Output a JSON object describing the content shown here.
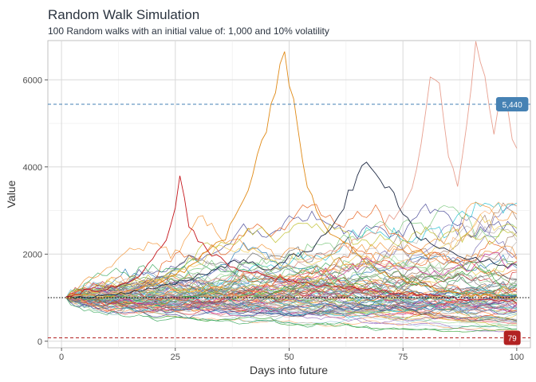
{
  "chart_data": {
    "type": "line",
    "title": "Random Walk Simulation",
    "subtitle": "100 Random walks with an initial value of: 1,000 and 10% volatility",
    "xlabel": "Days into future",
    "ylabel": "Value",
    "xlim": [
      -3,
      103
    ],
    "ylim": [
      -150,
      6900
    ],
    "x_ticks": [
      0,
      25,
      50,
      75,
      100
    ],
    "x_tick_labels": [
      "0",
      "25",
      "50",
      "75",
      "100"
    ],
    "y_ticks": [
      0,
      2000,
      4000,
      6000
    ],
    "y_tick_labels": [
      "0",
      "2000",
      "4000",
      "6000"
    ],
    "grid": true,
    "legend": "none",
    "n_walks": 100,
    "n_days": 100,
    "initial_value": 1000,
    "volatility": 0.1,
    "reference_lines": [
      {
        "value": 5440,
        "label": "5,440",
        "style": "dashed",
        "color": "#4682b4"
      },
      {
        "value": 1000,
        "label": "",
        "style": "dotted",
        "color": "#000000"
      },
      {
        "value": 79,
        "label": "79",
        "style": "dashed",
        "color": "#b22222"
      }
    ],
    "highlighted_walks": [
      {
        "color": "#e08a16",
        "points": [
          [
            1,
            1000
          ],
          [
            5,
            1060
          ],
          [
            10,
            1000
          ],
          [
            15,
            1150
          ],
          [
            20,
            1300
          ],
          [
            25,
            1500
          ],
          [
            28,
            1700
          ],
          [
            30,
            1900
          ],
          [
            33,
            2200
          ],
          [
            36,
            2400
          ],
          [
            38,
            2800
          ],
          [
            40,
            3300
          ],
          [
            42,
            3900
          ],
          [
            44,
            4500
          ],
          [
            46,
            5300
          ],
          [
            48,
            6300
          ],
          [
            49,
            6650
          ],
          [
            50,
            6000
          ],
          [
            51,
            5400
          ],
          [
            52,
            4800
          ],
          [
            54,
            3600
          ],
          [
            56,
            2900
          ],
          [
            58,
            2600
          ],
          [
            60,
            2500
          ],
          [
            62,
            2300
          ],
          [
            64,
            2100
          ],
          [
            66,
            1900
          ],
          [
            68,
            1750
          ],
          [
            70,
            1600
          ],
          [
            72,
            1500
          ],
          [
            74,
            1450
          ],
          [
            76,
            1380
          ],
          [
            78,
            1300
          ],
          [
            80,
            1250
          ],
          [
            82,
            1200
          ],
          [
            85,
            1150
          ],
          [
            88,
            1100
          ],
          [
            90,
            1080
          ],
          [
            93,
            1050
          ],
          [
            96,
            1020
          ],
          [
            100,
            980
          ]
        ]
      },
      {
        "color": "#e8a090",
        "points": [
          [
            1,
            1000
          ],
          [
            10,
            1100
          ],
          [
            20,
            1200
          ],
          [
            30,
            1350
          ],
          [
            40,
            1500
          ],
          [
            50,
            1700
          ],
          [
            55,
            1900
          ],
          [
            60,
            2100
          ],
          [
            65,
            2300
          ],
          [
            70,
            2600
          ],
          [
            74,
            3000
          ],
          [
            77,
            3500
          ],
          [
            79,
            4500
          ],
          [
            81,
            6200
          ],
          [
            83,
            5800
          ],
          [
            85,
            4200
          ],
          [
            87,
            3600
          ],
          [
            89,
            4800
          ],
          [
            91,
            6700
          ],
          [
            93,
            5900
          ],
          [
            95,
            4800
          ],
          [
            97,
            5600
          ],
          [
            98,
            5200
          ],
          [
            99,
            4600
          ],
          [
            100,
            4300
          ]
        ]
      },
      {
        "color": "#1f2a44",
        "points": [
          [
            1,
            1000
          ],
          [
            10,
            1050
          ],
          [
            20,
            1200
          ],
          [
            30,
            1500
          ],
          [
            40,
            1900
          ],
          [
            45,
            1600
          ],
          [
            50,
            1950
          ],
          [
            55,
            2100
          ],
          [
            58,
            2500
          ],
          [
            60,
            2800
          ],
          [
            62,
            3100
          ],
          [
            64,
            3600
          ],
          [
            66,
            4100
          ],
          [
            68,
            4000
          ],
          [
            70,
            3700
          ],
          [
            72,
            3500
          ],
          [
            74,
            3100
          ],
          [
            76,
            2900
          ],
          [
            78,
            2500
          ],
          [
            80,
            2300
          ],
          [
            85,
            2100
          ],
          [
            90,
            1900
          ],
          [
            95,
            1800
          ],
          [
            100,
            1700
          ]
        ]
      },
      {
        "color": "#c4161c",
        "points": [
          [
            1,
            1000
          ],
          [
            5,
            1150
          ],
          [
            10,
            1200
          ],
          [
            15,
            1400
          ],
          [
            18,
            1600
          ],
          [
            20,
            1900
          ],
          [
            22,
            2200
          ],
          [
            24,
            2600
          ],
          [
            26,
            3700
          ],
          [
            27,
            3300
          ],
          [
            28,
            2700
          ],
          [
            30,
            2300
          ],
          [
            33,
            2000
          ],
          [
            36,
            1800
          ],
          [
            40,
            1600
          ],
          [
            45,
            1500
          ],
          [
            50,
            1400
          ],
          [
            55,
            1300
          ],
          [
            60,
            1250
          ],
          [
            65,
            1200
          ],
          [
            70,
            1150
          ],
          [
            75,
            1100
          ],
          [
            80,
            1050
          ],
          [
            85,
            1000
          ],
          [
            90,
            950
          ],
          [
            95,
            930
          ],
          [
            100,
            900
          ]
        ]
      }
    ]
  }
}
